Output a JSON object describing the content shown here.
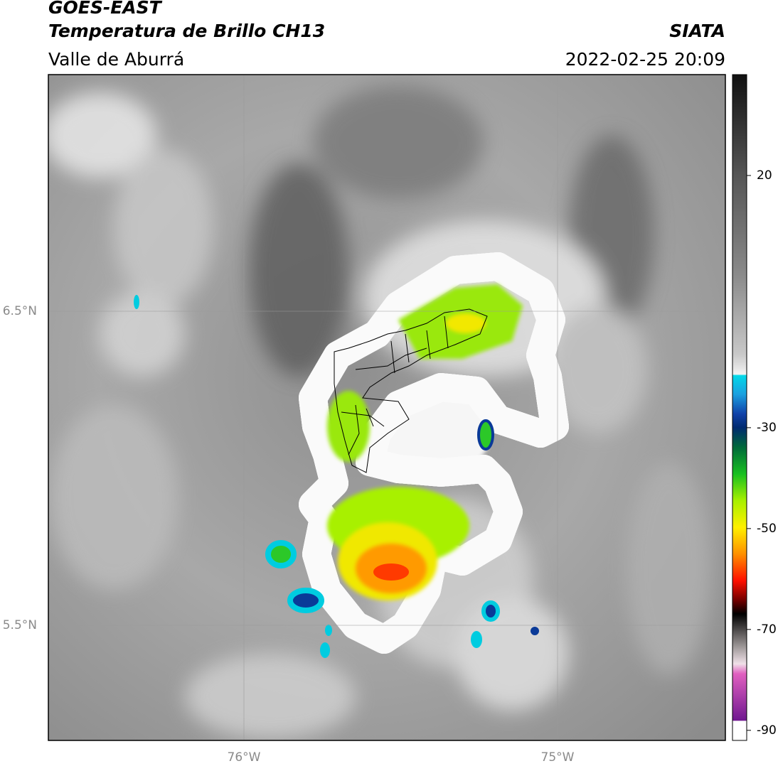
{
  "header": {
    "source": "GOES-EAST",
    "product": "Temperatura de Brillo CH13",
    "region": "Valle de Aburrá",
    "agency": "SIATA",
    "datetime": "2022-02-25 20:09"
  },
  "map": {
    "lat_labels": [
      "6.5°N",
      "5.5°N"
    ],
    "lon_labels": [
      "76°W",
      "75°W"
    ]
  },
  "colorbar": {
    "range": [
      -92,
      40
    ],
    "ticks": [
      20,
      -30,
      -50,
      -70,
      -90
    ]
  }
}
